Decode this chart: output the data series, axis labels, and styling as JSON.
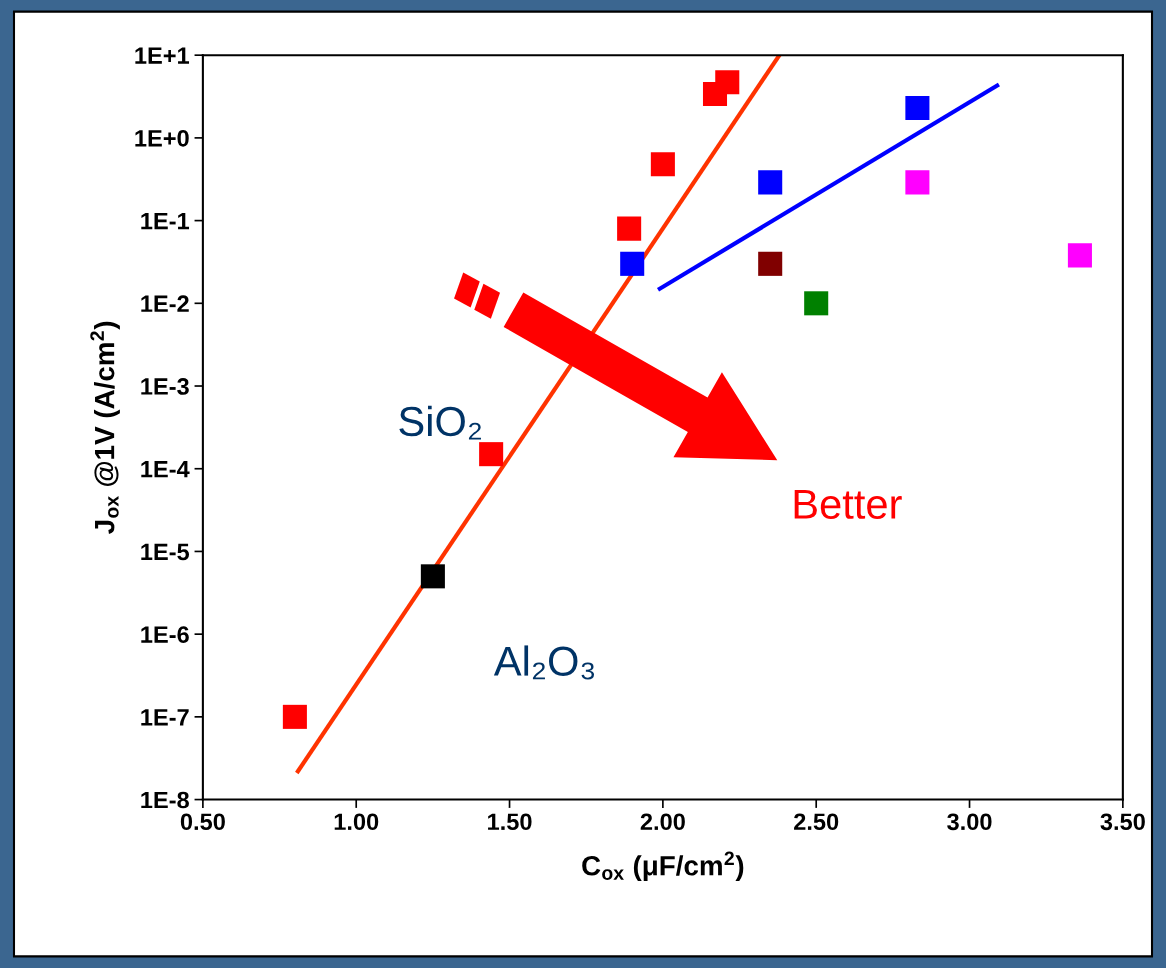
{
  "chart_data": {
    "type": "scatter",
    "xlabel": "C$_{ox}$ (μF/cm$^{2}$)",
    "ylabel": "J$_{ox}$ @1V (A/cm$^{2}$)",
    "log": "y",
    "marker": "square",
    "grid": false,
    "xlim": [
      0.5,
      3.5
    ],
    "ylim": [
      1e-08,
      10
    ],
    "xticks": [
      {
        "value": 0.5,
        "label": "0.50"
      },
      {
        "value": 1.0,
        "label": "1.00"
      },
      {
        "value": 1.5,
        "label": "1.50"
      },
      {
        "value": 2.0,
        "label": "2.00"
      },
      {
        "value": 2.5,
        "label": "2.50"
      },
      {
        "value": 3.0,
        "label": "3.00"
      },
      {
        "value": 3.5,
        "label": "3.50"
      }
    ],
    "yticks": [
      {
        "value": 1e-08,
        "label": "1E-8"
      },
      {
        "value": 1e-07,
        "label": "1E-7"
      },
      {
        "value": 1e-06,
        "label": "1E-6"
      },
      {
        "value": 1e-05,
        "label": "1E-5"
      },
      {
        "value": 0.0001,
        "label": "1E-4"
      },
      {
        "value": 0.001,
        "label": "1E-3"
      },
      {
        "value": 0.01,
        "label": "1E-2"
      },
      {
        "value": 0.1,
        "label": "1E-1"
      },
      {
        "value": 1,
        "label": "1E+0"
      },
      {
        "value": 10,
        "label": "1E+1"
      }
    ],
    "series": [
      {
        "type": "line",
        "marker": "none",
        "color": "#ff3300",
        "x": [
          0.81,
          2.38
        ],
        "values": [
          2.2e-08,
          10
        ]
      },
      {
        "type": "line",
        "marker": "none",
        "color": "#0000ff",
        "x": [
          1.99,
          3.09
        ],
        "values": [
          0.015,
          4.3
        ]
      },
      {
        "color": "#ff0000",
        "x": [
          0.8,
          1.44,
          1.89,
          2.0,
          2.17,
          2.21
        ],
        "values": [
          1e-07,
          0.00015,
          0.08,
          0.48,
          3.4,
          4.7
        ]
      },
      {
        "color": "#000000",
        "x": [
          1.25
        ],
        "values": [
          5e-06
        ]
      },
      {
        "color": "#0000ff",
        "x": [
          1.9,
          2.35,
          2.83
        ],
        "values": [
          0.03,
          0.29,
          2.3
        ]
      },
      {
        "color": "#800000",
        "x": [
          2.35
        ],
        "values": [
          0.03
        ]
      },
      {
        "color": "#008000",
        "x": [
          2.5
        ],
        "values": [
          0.01
        ]
      },
      {
        "color": "#ff00ff",
        "x": [
          2.83,
          3.36
        ],
        "values": [
          0.29,
          0.038
        ]
      }
    ],
    "annotations": [
      "SiO₂",
      "Al₂O₃",
      "Better"
    ]
  }
}
